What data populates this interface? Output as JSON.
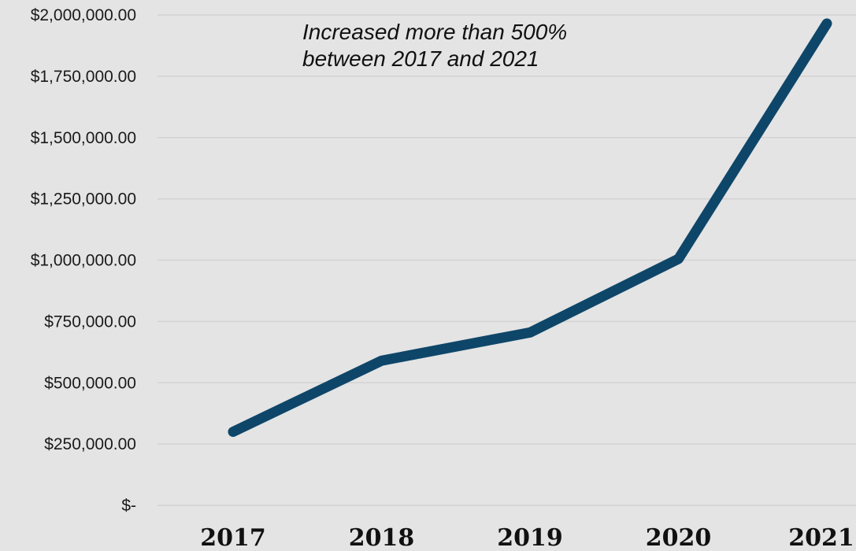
{
  "chart_data": {
    "type": "line",
    "categories": [
      "2017",
      "2018",
      "2019",
      "2020",
      "2021"
    ],
    "series": [
      {
        "values": [
          300000,
          590000,
          705000,
          1005000,
          1965000
        ],
        "color": "#0e4669"
      }
    ],
    "ylim": [
      0,
      2000000
    ],
    "ytick_labels": [
      "$-",
      "$250,000.00",
      "$500,000.00",
      "$750,000.00",
      "$1,000,000.00",
      "$1,250,000.00",
      "$1,500,000.00",
      "$1,750,000.00",
      "$2,000,000.00"
    ],
    "ytick_values": [
      0,
      250000,
      500000,
      750000,
      1000000,
      1250000,
      1500000,
      1750000,
      2000000
    ],
    "annotation": [
      "Increased more than 500%",
      "between 2017 and 2021"
    ],
    "grid": true,
    "legend": "none",
    "background_color": "#e4e4e4"
  }
}
